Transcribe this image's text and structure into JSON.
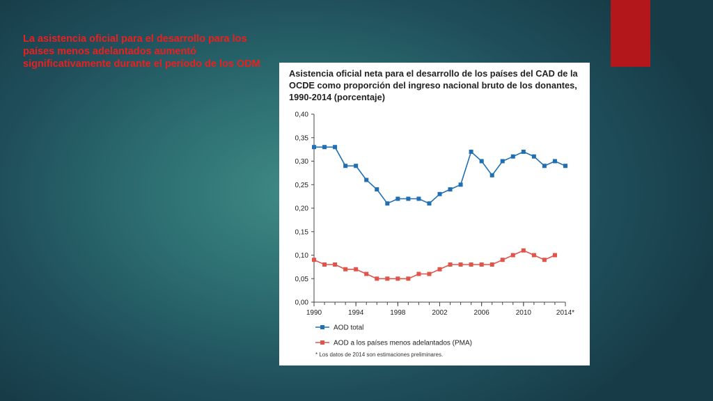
{
  "slide": {
    "heading": "La asistencia oficial para el desarrollo para los países menos adelantados aumentó significativamente durante el período de los ODM",
    "heading_color": "#e8201f",
    "accent_color": "#b3171b"
  },
  "chart_data": {
    "type": "line",
    "title": "Asistencia oficial neta para el desarrollo de los países del CAD de la OCDE como proporción del ingreso nacional bruto de los donantes, 1990-2014 (porcentaje)",
    "x": [
      1990,
      1991,
      1992,
      1993,
      1994,
      1995,
      1996,
      1997,
      1998,
      1999,
      2000,
      2001,
      2002,
      2003,
      2004,
      2005,
      2006,
      2007,
      2008,
      2009,
      2010,
      2011,
      2012,
      2013,
      2014
    ],
    "x_tick_labels": [
      "1990",
      "1994",
      "1998",
      "2002",
      "2006",
      "2010",
      "2014*"
    ],
    "x_tick_values": [
      1990,
      1994,
      1998,
      2002,
      2006,
      2010,
      2014
    ],
    "y_tick_labels": [
      "0,00",
      "0,05",
      "0,10",
      "0,15",
      "0,20",
      "0,25",
      "0,30",
      "0,35",
      "0,40"
    ],
    "ylim": [
      0,
      0.4
    ],
    "grid": false,
    "legend_position": "bottom",
    "series": [
      {
        "name": "AOD total",
        "color": "#1f6fb2",
        "values": [
          0.33,
          0.33,
          0.33,
          0.29,
          0.29,
          0.26,
          0.24,
          0.21,
          0.22,
          0.22,
          0.22,
          0.21,
          0.23,
          0.24,
          0.25,
          0.32,
          0.3,
          0.27,
          0.3,
          0.31,
          0.32,
          0.31,
          0.29,
          0.3,
          0.29
        ]
      },
      {
        "name": "AOD a los países menos adelantados (PMA)",
        "color": "#e0544a",
        "values": [
          0.09,
          0.08,
          0.08,
          0.07,
          0.07,
          0.06,
          0.05,
          0.05,
          0.05,
          0.05,
          0.06,
          0.06,
          0.07,
          0.08,
          0.08,
          0.08,
          0.08,
          0.08,
          0.09,
          0.1,
          0.11,
          0.1,
          0.09,
          0.1,
          null
        ]
      }
    ],
    "footnote": "* Los datos de 2014 son estimaciones preliminares."
  }
}
